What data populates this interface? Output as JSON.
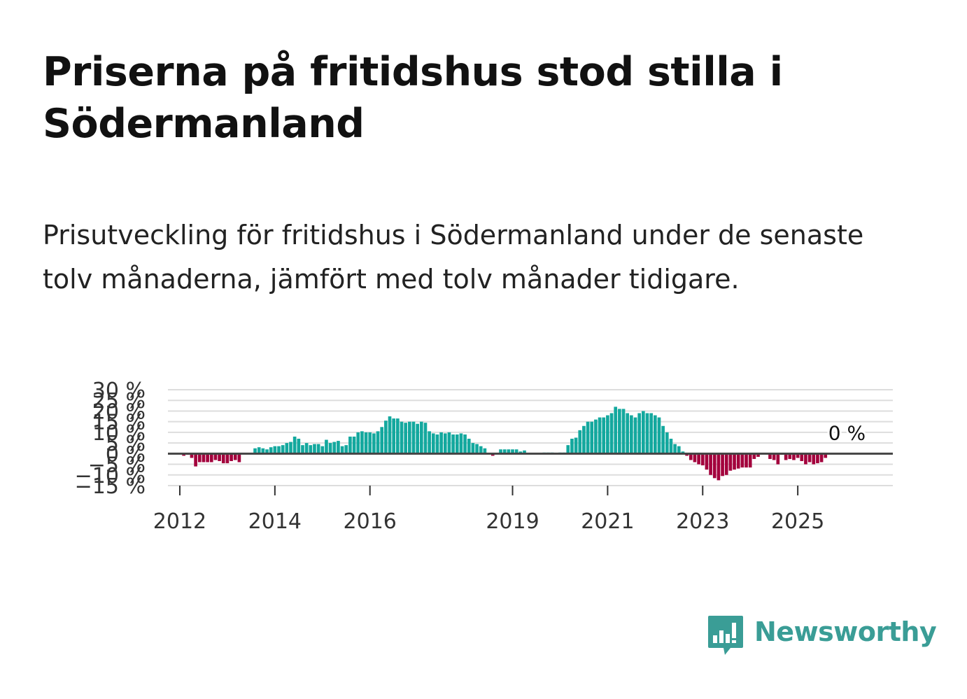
{
  "header": {
    "title": "Priserna på fritidshus stod stilla i Södermanland",
    "subtitle": "Prisutveckling för fritidshus i Södermanland under de senaste tolv månaderna, jämfört med tolv månader tidigare."
  },
  "brand": {
    "name": "Newsworthy"
  },
  "colors": {
    "positive": "#13a89e",
    "negative": "#a3003c",
    "grid": "#dddddd",
    "zero_line": "#444444",
    "brand": "#3a9d96"
  },
  "chart_data": {
    "type": "bar",
    "title": "Priserna på fritidshus stod stilla i Södermanland",
    "xlabel": "",
    "ylabel": "",
    "ylim": [
      -15,
      30
    ],
    "y_ticks": [
      30,
      25,
      20,
      15,
      10,
      5,
      0,
      -5,
      -10,
      -15
    ],
    "y_tick_labels": [
      "30 %",
      "25 %",
      "20 %",
      "15 %",
      "10 %",
      "5 %",
      "0 %",
      "−5 %",
      "−10 %",
      "−15 %"
    ],
    "x_ticks": [
      2012,
      2014,
      2016,
      2019,
      2021,
      2023,
      2025
    ],
    "x_tick_labels": [
      "2012",
      "2014",
      "2016",
      "2019",
      "2021",
      "2023",
      "2025"
    ],
    "x_range": [
      2011.75,
      2027.0
    ],
    "start_year": 2012.0,
    "step": 0.0833333,
    "grid": true,
    "end_label": "0 %",
    "values": [
      0,
      -1,
      -0.5,
      -2,
      -6,
      -4,
      -4,
      -4,
      -4,
      -3,
      -3.5,
      -4.5,
      -4.5,
      -3.5,
      -3,
      -4,
      0,
      0,
      0,
      2.5,
      3,
      2.5,
      2,
      3,
      3.5,
      3.5,
      4,
      5,
      5.5,
      8,
      7,
      4,
      5,
      4,
      4.5,
      4.5,
      3.5,
      6.5,
      5,
      5.5,
      6,
      3.5,
      4,
      8,
      8,
      10,
      10.5,
      10,
      10,
      9.5,
      10.5,
      12.5,
      15.5,
      17.5,
      16.5,
      16.5,
      15,
      14.5,
      15,
      15,
      14,
      15,
      14.5,
      10.5,
      9.5,
      9,
      10,
      9.5,
      10,
      9,
      9,
      9.5,
      9,
      7,
      5,
      4.5,
      3.5,
      2.5,
      0,
      -1,
      0,
      2,
      2,
      2,
      2,
      2,
      1,
      1.5,
      0,
      0,
      0,
      0,
      0.5,
      0.5,
      0.5,
      0,
      0.5,
      0.5,
      4,
      7,
      7.5,
      11,
      13,
      15,
      15,
      16,
      17,
      17,
      18,
      19,
      22,
      21,
      21,
      19,
      18,
      17,
      19,
      20,
      19,
      19,
      18,
      17,
      13,
      10,
      7,
      4.5,
      3.5,
      1,
      -1,
      -3,
      -4,
      -5,
      -5.5,
      -7.5,
      -10,
      -11.5,
      -12.5,
      -10.5,
      -10,
      -8,
      -7.5,
      -7,
      -6.5,
      -6.5,
      -6.5,
      -2.5,
      -1.5,
      0,
      0,
      -2.5,
      -3,
      -5,
      -0.5,
      -3,
      -2.5,
      -3,
      -2,
      -3.5,
      -5,
      -4,
      -5,
      -4.5,
      -4,
      -2,
      0,
      0,
      0,
      0
    ]
  }
}
